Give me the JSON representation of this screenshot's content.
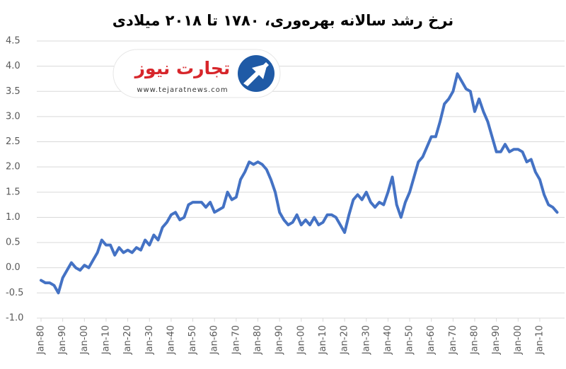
{
  "chart_data": {
    "type": "line",
    "title": "نرخ رشد سالانه بهره‌وری، ۱۷۸۰ تا ۲۰۱۸ میلادی",
    "categories": [
      "Jan-80",
      null,
      null,
      null,
      null,
      "Jan-90",
      null,
      null,
      null,
      null,
      "Jan-00",
      null,
      null,
      null,
      null,
      "Jan-10",
      null,
      null,
      null,
      null,
      "Jan-20",
      null,
      null,
      null,
      null,
      "Jan-30",
      null,
      null,
      null,
      null,
      "Jan-40",
      null,
      null,
      null,
      null,
      "Jan-50",
      null,
      null,
      null,
      null,
      "Jan-60",
      null,
      null,
      null,
      null,
      "Jan-70",
      null,
      null,
      null,
      null,
      "Jan-80",
      null,
      null,
      null,
      null,
      "Jan-90",
      null,
      null,
      null,
      null,
      "Jan-00",
      null,
      null,
      null,
      null,
      "Jan-10",
      null,
      null,
      null,
      null,
      "Jan-20",
      null,
      null,
      null,
      null,
      "Jan-30",
      null,
      null,
      null,
      null,
      "Jan-40",
      null,
      null,
      null,
      null,
      "Jan-50",
      null,
      null,
      null,
      null,
      "Jan-60",
      null,
      null,
      null,
      null,
      "Jan-70",
      null,
      null,
      null,
      null,
      "Jan-80",
      null,
      null,
      null,
      null,
      "Jan-90",
      null,
      null,
      null,
      null,
      "Jan-00",
      null,
      null,
      null,
      null,
      "Jan-10",
      null,
      null,
      null,
      null
    ],
    "values": [
      -0.25,
      -0.3,
      -0.3,
      -0.35,
      -0.5,
      -0.2,
      -0.05,
      0.1,
      0.0,
      -0.05,
      0.05,
      0.0,
      0.15,
      0.3,
      0.55,
      0.45,
      0.45,
      0.25,
      0.4,
      0.3,
      0.35,
      0.3,
      0.4,
      0.35,
      0.55,
      0.45,
      0.65,
      0.55,
      0.8,
      0.9,
      1.05,
      1.1,
      0.95,
      1.0,
      1.25,
      1.3,
      1.3,
      1.3,
      1.2,
      1.3,
      1.1,
      1.15,
      1.2,
      1.5,
      1.35,
      1.4,
      1.75,
      1.9,
      2.1,
      2.05,
      2.1,
      2.05,
      1.95,
      1.75,
      1.5,
      1.1,
      0.95,
      0.85,
      0.9,
      1.05,
      0.85,
      0.95,
      0.85,
      1.0,
      0.85,
      0.9,
      1.05,
      1.05,
      1.0,
      0.85,
      0.7,
      1.05,
      1.35,
      1.45,
      1.35,
      1.5,
      1.3,
      1.2,
      1.3,
      1.25,
      1.5,
      1.8,
      1.25,
      1.0,
      1.3,
      1.5,
      1.8,
      2.1,
      2.2,
      2.4,
      2.6,
      2.6,
      2.9,
      3.25,
      3.35,
      3.5,
      3.85,
      3.7,
      3.55,
      3.5,
      3.1,
      3.35,
      3.1,
      2.9,
      2.6,
      2.3,
      2.3,
      2.45,
      2.3,
      2.35,
      2.35,
      2.3,
      2.1,
      2.15,
      1.9,
      1.75,
      1.45,
      1.25,
      1.2,
      1.1
    ],
    "color": "#4472c4",
    "ylim": [
      -1,
      4.5
    ],
    "yticks": [
      {
        "value": -1,
        "label": "-1.0"
      },
      -0.5,
      {
        "value": 0,
        "label": "0.0"
      },
      0.5,
      {
        "value": 1,
        "label": "1.0"
      },
      1.5,
      {
        "value": 2,
        "label": "2.0"
      },
      2.5,
      {
        "value": 3,
        "label": "3.0"
      },
      3.5,
      {
        "value": 4,
        "label": "4.0"
      },
      4.5
    ],
    "grid": true
  },
  "logo": {
    "name": "تجارت نیوز",
    "url": "www.tejaratnews.com"
  }
}
